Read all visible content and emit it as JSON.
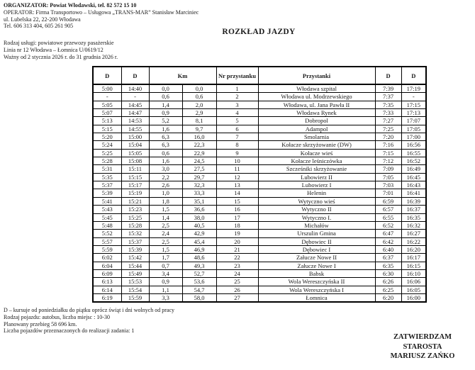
{
  "header": {
    "organizer": "ORGANIZATOR: Powiat Włodawski, tel. 82 572 15 10",
    "operator": "OPERATOR: Firma Transportowo – Usługowa „TRANS-MAR” Stanisław Marciniec",
    "address": "ul. Lubelska 22, 22-200 Włodawa",
    "phone": "Tel. 606 313 404, 605 261 905"
  },
  "title": "ROZKŁAD JAZDY",
  "service_info": {
    "service_type": "Rodzaj usługi: powiatowe przewozy pasażerskie",
    "line": "Linia nr 12 Włodawa – Łomnica U/0619/12",
    "validity": "Ważny od 2 stycznia 2026 r. do 31 grudnia 2026 r."
  },
  "table": {
    "headers": {
      "d1": "D",
      "d2": "D",
      "km": "Km",
      "stop_no": "Nr przystanku",
      "stops": "Przystanki",
      "d3": "D",
      "d4": "D"
    },
    "rows": [
      [
        "5:00",
        "14:40",
        "0,0",
        "0,0",
        "1",
        "Włodawa szpital",
        "7:39",
        "17:19"
      ],
      [
        "-",
        "-",
        "0,6",
        "0,6",
        "2",
        "Włodawa ul. Modrzewskiego",
        "7:37",
        "-"
      ],
      [
        "5:05",
        "14:45",
        "1,4",
        "2,0",
        "3",
        "Włodawa, ul. Jana Pawła II",
        "7:35",
        "17:15"
      ],
      [
        "5:07",
        "14:47",
        "0,9",
        "2,9",
        "4",
        "Włodawa Rynek",
        "7:33",
        "17:13"
      ],
      [
        "5:13",
        "14:53",
        "5,2",
        "8,1",
        "5",
        "Dobropol",
        "7:27",
        "17:07"
      ],
      [
        "5:15",
        "14:55",
        "1,6",
        "9,7",
        "6",
        "Adampol",
        "7:25",
        "17:05"
      ],
      [
        "5:20",
        "15:00",
        "6,3",
        "16,0",
        "7",
        "Smolarnia",
        "7:20",
        "17:00"
      ],
      [
        "5:24",
        "15:04",
        "6,3",
        "22,3",
        "8",
        "Kołacze skrzyżowanie (DW)",
        "7:16",
        "16:56"
      ],
      [
        "5:25",
        "15:05",
        "0,6",
        "22,9",
        "9",
        "Kołacze wieś",
        "7:15",
        "16:55"
      ],
      [
        "5:28",
        "15:08",
        "1,6",
        "24,5",
        "10",
        "Kołacze leśniczówka",
        "7:12",
        "16:52"
      ],
      [
        "5:31",
        "15:11",
        "3,0",
        "27,5",
        "11",
        "Szcześniki skrzyżowanie",
        "7:09",
        "16:49"
      ],
      [
        "5:35",
        "15:15",
        "2,2",
        "29,7",
        "12",
        "Lubowierz II",
        "7:05",
        "16:45"
      ],
      [
        "5:37",
        "15:17",
        "2,6",
        "32,3",
        "13",
        "Lubowierz I",
        "7:03",
        "16:43"
      ],
      [
        "5:39",
        "15:19",
        "1,0",
        "33,3",
        "14",
        "Helenin",
        "7:01",
        "16:41"
      ],
      [
        "5:41",
        "15:21",
        "1,8",
        "35,1",
        "15",
        "Wytyczno wieś",
        "6:59",
        "16:39"
      ],
      [
        "5:43",
        "15:23",
        "1,5",
        "36,6",
        "16",
        "Wytyczno II",
        "6:57",
        "16:37"
      ],
      [
        "5:45",
        "15:25",
        "1,4",
        "38,0",
        "17",
        "Wytyczno I.",
        "6:55",
        "16:35"
      ],
      [
        "5:48",
        "15:28",
        "2,5",
        "40,5",
        "18",
        "Michałów",
        "6:52",
        "16:32"
      ],
      [
        "5:52",
        "15:32",
        "2,4",
        "42,9",
        "19",
        "Urszulin Gmina",
        "6:47",
        "16:27"
      ],
      [
        "5:57",
        "15:37",
        "2,5",
        "45,4",
        "20",
        "Dębowiec II",
        "6:42",
        "16:22"
      ],
      [
        "5:59",
        "15:39",
        "1,5",
        "46,9",
        "21",
        "Dębowiec I",
        "6:40",
        "16:20"
      ],
      [
        "6:02",
        "15:42",
        "1,7",
        "48,6",
        "22",
        "Załucze Nowe II",
        "6:37",
        "16:17"
      ],
      [
        "6:04",
        "15:44",
        "0,7",
        "49,3",
        "23",
        "Załucze Nowe I",
        "6:35",
        "16:15"
      ],
      [
        "6:09",
        "15:49",
        "3,4",
        "52,7",
        "24",
        "Babsk",
        "6:30",
        "16:10"
      ],
      [
        "6:13",
        "15:53",
        "0,9",
        "53,6",
        "25",
        "Wola Wereszczyńska II",
        "6:26",
        "16:06"
      ],
      [
        "6:14",
        "15:54",
        "1,1",
        "54,7",
        "26",
        "Wola Wereszczyńska I",
        "6:25",
        "16:05"
      ],
      [
        "6:19",
        "15:59",
        "3,3",
        "58,0",
        "27",
        "Łomnica",
        "6:20",
        "16:00"
      ]
    ]
  },
  "footer": {
    "legend": "D – kursuje od poniedziałku do piątku oprócz świąt i dni wolnych od pracy",
    "vehicle_type": "Rodzaj pojazdu: autobus, liczba miejsc : 10-30",
    "mileage": "Planowany przebieg 58 696 km.",
    "vehicles_count": "Liczba pojazdów przeznaczonych do realizacji zadania: 1"
  },
  "signature": {
    "approve": "ZATWIERDZAM",
    "role": "STAROSTA",
    "name": "MARIUSZ ZAŃKO"
  }
}
